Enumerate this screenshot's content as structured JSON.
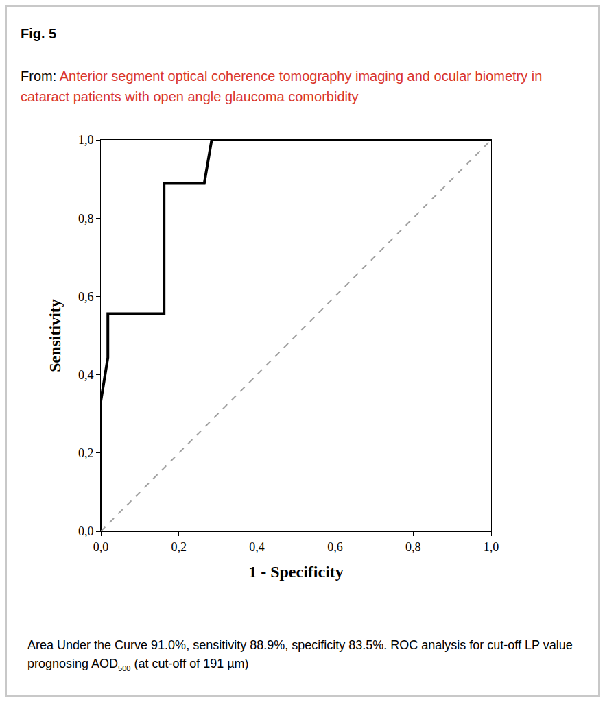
{
  "figure_label": "Fig. 5",
  "source_prefix": "From: ",
  "source_title": "Anterior segment optical coherence tomography imaging and ocular biometry in cataract patients with open angle glaucoma comorbidity",
  "caption": [
    {
      "text": "Area Under the Curve 91.0%, sensitivity 88.9%, specificity 83.5%. ROC analysis for cut-off LP value prognosing AOD"
    },
    {
      "text": "500",
      "sub": true
    },
    {
      "text": " (at cut-off of 191 µm)"
    }
  ],
  "chart_data": {
    "type": "line",
    "x_label": "1 - Specificity",
    "y_label": "Sensitivity",
    "xlim": [
      0,
      1
    ],
    "ylim": [
      0,
      1
    ],
    "xticks": [
      {
        "value": 0,
        "label": "0,0"
      },
      {
        "value": 0.2,
        "label": "0,2"
      },
      {
        "value": 0.4,
        "label": "0,4"
      },
      {
        "value": 0.6,
        "label": "0,6"
      },
      {
        "value": 0.8,
        "label": "0,8"
      },
      {
        "value": 1,
        "label": "1,0"
      }
    ],
    "yticks": [
      {
        "value": 0,
        "label": "0,0"
      },
      {
        "value": 0.2,
        "label": "0,2"
      },
      {
        "value": 0.4,
        "label": "0,4"
      },
      {
        "value": 0.6,
        "label": "0,6"
      },
      {
        "value": 0.8,
        "label": "0,8"
      },
      {
        "value": 1,
        "label": "1,0"
      }
    ],
    "grid": false,
    "series": [
      {
        "color": "#000000",
        "line_style": "solid",
        "x": [
          0,
          0,
          0.018,
          0.018,
          0.162,
          0.162,
          0.265,
          0.284,
          1
        ],
        "values": [
          0,
          0.333,
          0.444,
          0.556,
          0.556,
          0.889,
          0.889,
          1,
          1
        ]
      },
      {
        "color": "#a0a0a0",
        "line_style": "dash",
        "x": [
          0,
          1
        ],
        "values": [
          0,
          1
        ]
      }
    ]
  }
}
